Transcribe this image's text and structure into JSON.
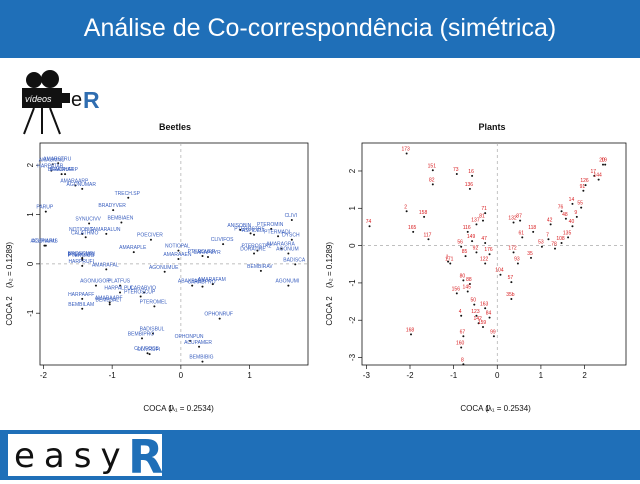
{
  "header": {
    "title": "Análise de Co-correspondência (simétrica)"
  },
  "logo": {
    "videos_text": "vídeos",
    "e_text": "e",
    "r_text": "R",
    "accent": "#2f6db0"
  },
  "footer": {
    "easy_text": "easy",
    "r_text": "R",
    "bar_color": "#1f6fb8"
  },
  "chart_data": [
    {
      "type": "scatter",
      "title": "Beetles",
      "xlabel": "COCA 1",
      "xlabel_math": "(λ₁ = 0.2534)",
      "ylabel": "COCA 2",
      "ylabel_math": "(λ₂ = 0.1289)",
      "xlim": [
        -2.05,
        1.85
      ],
      "ylim": [
        -2.05,
        2.45
      ],
      "xticks": [
        "-2",
        "-1",
        "0",
        "1"
      ],
      "xtick_values": [
        -2,
        -1,
        0,
        1
      ],
      "yticks": [
        "-1",
        "0",
        "1",
        "2"
      ],
      "ytick_values": [
        -1,
        0,
        1,
        2
      ],
      "label_color": "#3a5fbf",
      "points": [
        {
          "x": -1.8,
          "y": 2.1,
          "label": "AMARSTRU"
        },
        {
          "x": -1.88,
          "y": 2.08,
          "label": "AMAUMNU"
        },
        {
          "x": -1.9,
          "y": 1.95,
          "label": "HARPATAR"
        },
        {
          "x": -1.7,
          "y": 1.88,
          "label": "BRADHARP"
        },
        {
          "x": -1.75,
          "y": 1.88,
          "label": "BRADRUFI"
        },
        {
          "x": -1.55,
          "y": 1.65,
          "label": "AMARAARP"
        },
        {
          "x": -1.45,
          "y": 1.58,
          "label": "AGONUMAR"
        },
        {
          "x": -0.78,
          "y": 1.4,
          "label": "TRECH.SP"
        },
        {
          "x": -1.0,
          "y": 1.15,
          "label": "BRADYVER"
        },
        {
          "x": -1.98,
          "y": 1.12,
          "label": "PARUP"
        },
        {
          "x": -0.88,
          "y": 0.9,
          "label": "BEMBIAEN"
        },
        {
          "x": -1.35,
          "y": 0.88,
          "label": "SYNUCIVV"
        },
        {
          "x": -1.45,
          "y": 0.67,
          "label": "NOTIOBIG"
        },
        {
          "x": -1.1,
          "y": 0.67,
          "label": "TAMARALUN"
        },
        {
          "x": -1.4,
          "y": 0.6,
          "label": "CALATHMO"
        },
        {
          "x": -2.0,
          "y": 0.43,
          "label": "ACUPIARU"
        },
        {
          "x": -1.98,
          "y": 0.43,
          "label": "AGONUMS"
        },
        {
          "x": -0.45,
          "y": 0.55,
          "label": "POECIVER"
        },
        {
          "x": -0.7,
          "y": 0.3,
          "label": "AMARAPLE"
        },
        {
          "x": -0.05,
          "y": 0.33,
          "label": "NOTIOPAL"
        },
        {
          "x": -1.45,
          "y": 0.18,
          "label": "BROSCMIN"
        },
        {
          "x": -1.45,
          "y": 0.16,
          "label": "PTEROSTR"
        },
        {
          "x": -1.45,
          "y": 0.14,
          "label": "PTERONIG"
        },
        {
          "x": -1.45,
          "y": 0.02,
          "label": "HARPRUFI"
        },
        {
          "x": -1.1,
          "y": -0.05,
          "label": "AMARAFAL"
        },
        {
          "x": -0.05,
          "y": 0.16,
          "label": "AMARAAEN"
        },
        {
          "x": 0.38,
          "y": 0.2,
          "label": "CARAPEYR"
        },
        {
          "x": -0.25,
          "y": -0.1,
          "label": "AGONUMUE"
        },
        {
          "x": -1.25,
          "y": -0.38,
          "label": "AGONUGOR"
        },
        {
          "x": -0.9,
          "y": -0.38,
          "label": "PLATFUS"
        },
        {
          "x": -0.9,
          "y": -0.52,
          "label": "HARPALPUL"
        },
        {
          "x": -0.55,
          "y": -0.52,
          "label": "CARABVIO"
        },
        {
          "x": -0.6,
          "y": -0.6,
          "label": "PTEROSCUP"
        },
        {
          "x": -1.45,
          "y": -0.65,
          "label": "HARPAAFF"
        },
        {
          "x": -1.05,
          "y": -0.72,
          "label": "AMARAARF"
        },
        {
          "x": -1.05,
          "y": -0.76,
          "label": "BEMBSALT"
        },
        {
          "x": -1.45,
          "y": -0.85,
          "label": "BEMBILAM"
        },
        {
          "x": -0.4,
          "y": -0.8,
          "label": "PTEROMEL"
        },
        {
          "x": 0.15,
          "y": -0.38,
          "label": "ABAXPARA"
        },
        {
          "x": 0.3,
          "y": -0.4,
          "label": "CARABPRO"
        },
        {
          "x": 0.55,
          "y": -1.05,
          "label": "OPHONRUF"
        },
        {
          "x": -0.42,
          "y": -1.35,
          "label": "BADISBUL"
        },
        {
          "x": -0.58,
          "y": -1.45,
          "label": "BEMBIPRO"
        },
        {
          "x": 0.12,
          "y": -1.5,
          "label": "OPHONPUN"
        },
        {
          "x": 0.25,
          "y": -1.62,
          "label": "ACUPAMER"
        },
        {
          "x": -0.5,
          "y": -1.75,
          "label": "CLIVFOSS"
        },
        {
          "x": -0.47,
          "y": -1.77,
          "label": "OLIVRUFI"
        },
        {
          "x": 0.3,
          "y": -1.92,
          "label": "BEMBIBIG"
        },
        {
          "x": 0.85,
          "y": 0.75,
          "label": "ANISOBIN"
        },
        {
          "x": 1.3,
          "y": 0.77,
          "label": "PTEROMIN"
        },
        {
          "x": 1.0,
          "y": 0.68,
          "label": "PTEROSTRE"
        },
        {
          "x": 1.05,
          "y": 0.65,
          "label": "ASPIDELI"
        },
        {
          "x": 1.6,
          "y": 0.95,
          "label": "CLIVI"
        },
        {
          "x": 1.4,
          "y": 0.62,
          "label": "PTERMADI"
        },
        {
          "x": 1.6,
          "y": 0.55,
          "label": "DYSCH"
        },
        {
          "x": 0.6,
          "y": 0.46,
          "label": "CLIVIFOS"
        },
        {
          "x": 1.1,
          "y": 0.33,
          "label": "PTEROSTR2"
        },
        {
          "x": 1.05,
          "y": 0.27,
          "label": "DORATIRE"
        },
        {
          "x": 1.45,
          "y": 0.37,
          "label": "AMARAGRA"
        },
        {
          "x": 1.55,
          "y": 0.27,
          "label": "AGONUM"
        },
        {
          "x": 1.65,
          "y": 0.05,
          "label": "BADISCA"
        },
        {
          "x": 1.15,
          "y": -0.08,
          "label": "BEMBIRAV"
        },
        {
          "x": 1.55,
          "y": -0.38,
          "label": "AGONUMI"
        },
        {
          "x": 0.3,
          "y": 0.22,
          "label": "PTEROVER"
        },
        {
          "x": 0.45,
          "y": -0.35,
          "label": "AMARAFAM"
        }
      ]
    },
    {
      "type": "scatter",
      "title": "Plants",
      "xlabel": "COCA 1",
      "xlabel_math": "(λ₁ = 0.2534)",
      "ylabel": "COCA 2",
      "ylabel_math": "(λ₂ = 0.1289)",
      "xlim": [
        -3.1,
        2.95
      ],
      "ylim": [
        -3.2,
        2.75
      ],
      "xticks": [
        "-3",
        "-2",
        "-1",
        "0",
        "1",
        "2"
      ],
      "xtick_values": [
        -3,
        -2,
        -1,
        0,
        1,
        2
      ],
      "yticks": [
        "-3",
        "-2",
        "-1",
        "0",
        "1",
        "2"
      ],
      "ytick_values": [
        -3,
        -2,
        -1,
        0,
        1,
        2
      ],
      "label_color": "#d7191c",
      "points": [
        {
          "x": -2.1,
          "y": 2.55,
          "label": "173"
        },
        {
          "x": -1.5,
          "y": 2.1,
          "label": "151"
        },
        {
          "x": -0.95,
          "y": 2.0,
          "label": "73"
        },
        {
          "x": -0.6,
          "y": 1.95,
          "label": "16"
        },
        {
          "x": -1.5,
          "y": 1.72,
          "label": "82"
        },
        {
          "x": -0.65,
          "y": 1.6,
          "label": "136"
        },
        {
          "x": -2.1,
          "y": 1.0,
          "label": "2"
        },
        {
          "x": -1.7,
          "y": 0.85,
          "label": "158"
        },
        {
          "x": -2.95,
          "y": 0.6,
          "label": "74"
        },
        {
          "x": -1.95,
          "y": 0.45,
          "label": "165"
        },
        {
          "x": -1.6,
          "y": 0.25,
          "label": "117"
        },
        {
          "x": -0.3,
          "y": 0.95,
          "label": "71"
        },
        {
          "x": -0.35,
          "y": 0.75,
          "label": "81"
        },
        {
          "x": -0.5,
          "y": 0.65,
          "label": "137"
        },
        {
          "x": -0.7,
          "y": 0.45,
          "label": "116"
        },
        {
          "x": -0.85,
          "y": 0.05,
          "label": "56"
        },
        {
          "x": -0.6,
          "y": 0.2,
          "label": "149"
        },
        {
          "x": -0.3,
          "y": 0.15,
          "label": "47"
        },
        {
          "x": -0.75,
          "y": -0.2,
          "label": "85"
        },
        {
          "x": -1.15,
          "y": -0.35,
          "label": "1"
        },
        {
          "x": -1.1,
          "y": -0.4,
          "label": "171"
        },
        {
          "x": -0.5,
          "y": -0.1,
          "label": "92"
        },
        {
          "x": -0.3,
          "y": -0.4,
          "label": "122"
        },
        {
          "x": -0.2,
          "y": -0.15,
          "label": "176"
        },
        {
          "x": -0.8,
          "y": -0.85,
          "label": "80"
        },
        {
          "x": -0.65,
          "y": -0.95,
          "label": "88"
        },
        {
          "x": -0.7,
          "y": -1.15,
          "label": "145"
        },
        {
          "x": -0.95,
          "y": -1.2,
          "label": "156"
        },
        {
          "x": -0.55,
          "y": -1.5,
          "label": "50"
        },
        {
          "x": -0.3,
          "y": -1.6,
          "label": "163"
        },
        {
          "x": -0.85,
          "y": -1.8,
          "label": "4"
        },
        {
          "x": -0.5,
          "y": -1.8,
          "label": "123"
        },
        {
          "x": -0.2,
          "y": -1.85,
          "label": "84"
        },
        {
          "x": -0.45,
          "y": -2.0,
          "label": "142"
        },
        {
          "x": -0.35,
          "y": -2.1,
          "label": "159"
        },
        {
          "x": -0.1,
          "y": -2.35,
          "label": "99"
        },
        {
          "x": -2.0,
          "y": -2.3,
          "label": "168"
        },
        {
          "x": -0.8,
          "y": -2.35,
          "label": "67"
        },
        {
          "x": -0.85,
          "y": -2.65,
          "label": "160"
        },
        {
          "x": -0.8,
          "y": -3.1,
          "label": "8"
        },
        {
          "x": 0.35,
          "y": 0.7,
          "label": "132"
        },
        {
          "x": 0.5,
          "y": 0.75,
          "label": "87"
        },
        {
          "x": 0.55,
          "y": 0.3,
          "label": "61"
        },
        {
          "x": 0.8,
          "y": 0.45,
          "label": "118"
        },
        {
          "x": 0.35,
          "y": -0.1,
          "label": "172"
        },
        {
          "x": 0.45,
          "y": -0.4,
          "label": "93"
        },
        {
          "x": 0.75,
          "y": -0.25,
          "label": "35"
        },
        {
          "x": 0.05,
          "y": -0.7,
          "label": "104"
        },
        {
          "x": 0.3,
          "y": -0.9,
          "label": "57"
        },
        {
          "x": 0.3,
          "y": -1.35,
          "label": "35b"
        },
        {
          "x": 1.2,
          "y": 0.65,
          "label": "42"
        },
        {
          "x": 1.15,
          "y": 0.25,
          "label": "7"
        },
        {
          "x": 1.3,
          "y": 0.0,
          "label": "78"
        },
        {
          "x": 1.55,
          "y": 0.8,
          "label": "48"
        },
        {
          "x": 1.7,
          "y": 0.6,
          "label": "40"
        },
        {
          "x": 1.8,
          "y": 0.85,
          "label": "9"
        },
        {
          "x": 1.9,
          "y": 1.1,
          "label": "55"
        },
        {
          "x": 1.95,
          "y": 1.55,
          "label": "91"
        },
        {
          "x": 2.2,
          "y": 1.95,
          "label": "17"
        },
        {
          "x": 2.3,
          "y": 1.85,
          "label": "144"
        },
        {
          "x": 2.0,
          "y": 1.7,
          "label": "126"
        },
        {
          "x": 1.7,
          "y": 1.2,
          "label": "14"
        },
        {
          "x": 2.45,
          "y": 2.25,
          "label": "19"
        },
        {
          "x": 2.4,
          "y": 2.25,
          "label": "20"
        },
        {
          "x": 1.45,
          "y": 1.0,
          "label": "76"
        },
        {
          "x": 1.6,
          "y": 0.3,
          "label": "135"
        },
        {
          "x": 1.45,
          "y": 0.15,
          "label": "108"
        },
        {
          "x": 1.0,
          "y": 0.05,
          "label": "53"
        }
      ]
    }
  ]
}
